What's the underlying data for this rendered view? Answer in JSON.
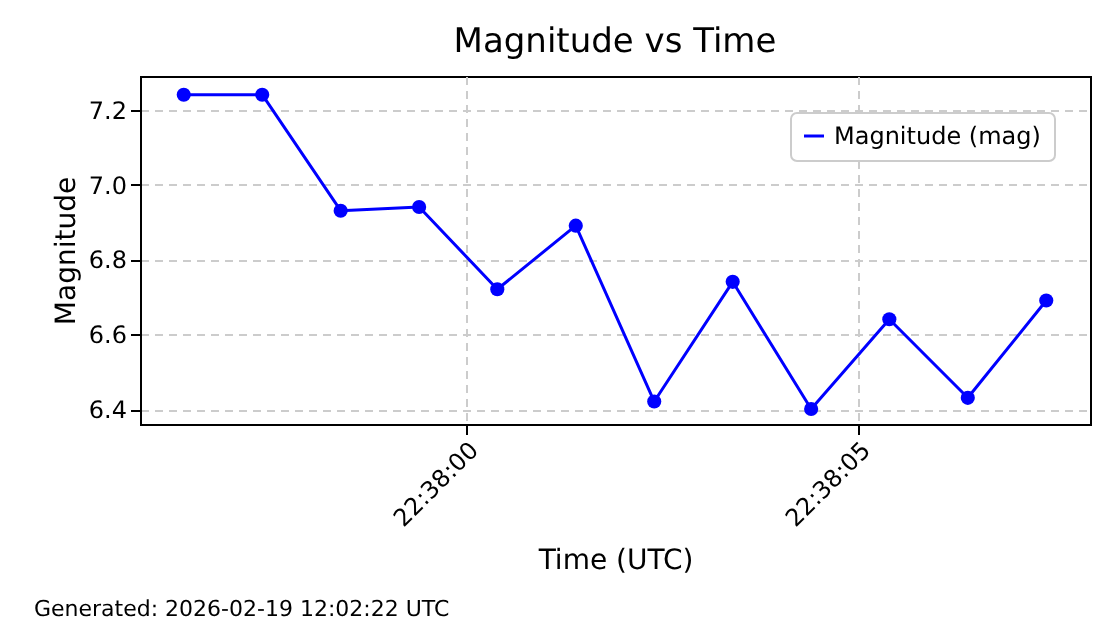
{
  "chart_data": {
    "type": "line",
    "title": "Magnitude vs Time",
    "xlabel": "Time (UTC)",
    "ylabel": "Magnitude",
    "x": [
      22.632333,
      22.632611,
      22.632889,
      22.633167,
      22.633444,
      22.633722,
      22.634,
      22.634278,
      22.634556,
      22.634833,
      22.635111,
      22.635389
    ],
    "series": [
      {
        "name": "Magnitude (mag)",
        "color": "#0000ff",
        "values": [
          7.24,
          7.24,
          6.93,
          6.94,
          6.72,
          6.89,
          6.42,
          6.74,
          6.4,
          6.64,
          6.43,
          6.69
        ]
      }
    ],
    "xlim": [
      22.632178,
      22.635544
    ],
    "xticks": [
      {
        "value": 22.633333,
        "label": "22:38:00"
      },
      {
        "value": 22.634722,
        "label": "22:38:05"
      }
    ],
    "ylim": [
      6.36,
      7.29
    ],
    "yticks": [
      6.4,
      6.6,
      6.8,
      {
        "value": 7,
        "label": "7.0"
      },
      7.2
    ],
    "grid": true,
    "legend": "top right",
    "marker": "circle",
    "line_style": "solid",
    "annotations": [
      "Generated: 2026-02-19 12:02:22 UTC"
    ]
  }
}
